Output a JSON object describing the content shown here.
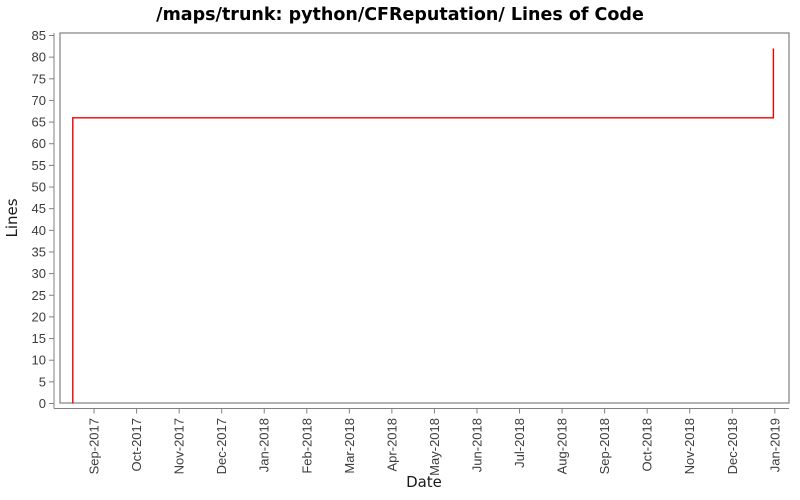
{
  "chart_data": {
    "type": "line",
    "title": "/maps/trunk: python/CFReputation/ Lines of Code",
    "xlabel": "Date",
    "ylabel": "Lines",
    "ylim": [
      0,
      85
    ],
    "ytick_step": 5,
    "grid": false,
    "legend_position": "none",
    "background": "#ffffff",
    "x_tick_labels": [
      "Sep-2017",
      "Oct-2017",
      "Nov-2017",
      "Dec-2017",
      "Jan-2018",
      "Feb-2018",
      "Mar-2018",
      "Apr-2018",
      "May-2018",
      "Jun-2018",
      "Jul-2018",
      "Aug-2018",
      "Sep-2018",
      "Oct-2018",
      "Nov-2018",
      "Dec-2018",
      "Jan-2019"
    ],
    "x_domain": [
      "2017-08-07",
      "2019-01-11"
    ],
    "series": [
      {
        "name": "Lines of Code",
        "color": "#ee0000",
        "points": [
          {
            "date": "2017-08-16",
            "value": 0
          },
          {
            "date": "2017-08-16",
            "value": 66
          },
          {
            "date": "2018-12-30",
            "value": 66
          },
          {
            "date": "2018-12-30",
            "value": 82
          }
        ]
      }
    ],
    "colors": {
      "axis": "#808080",
      "tick_label": "#3c3c3c",
      "axis_label": "#1a1a1a",
      "title": "#000000"
    }
  }
}
